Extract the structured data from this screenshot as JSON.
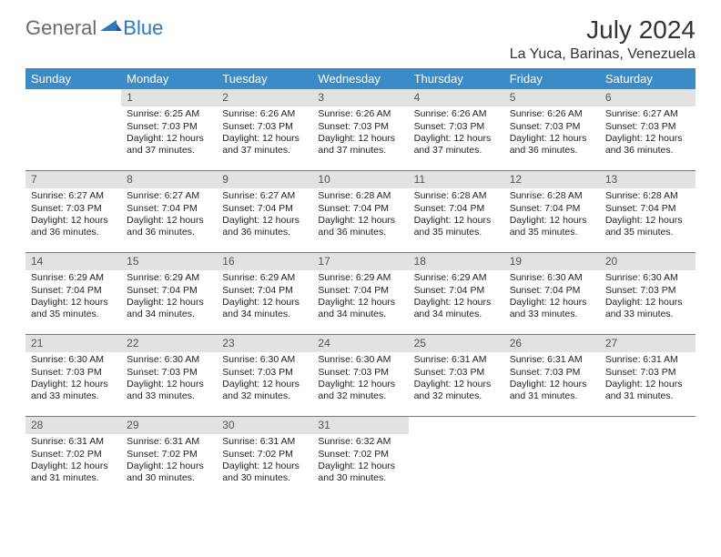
{
  "brand": {
    "part1": "General",
    "part2": "Blue"
  },
  "colors": {
    "header_bg": "#3b8bc9",
    "header_fg": "#ffffff",
    "date_strip_bg": "#e2e2e2",
    "rule": "#3b8bc9",
    "brand_gray": "#6a6a6a",
    "brand_blue": "#2a7ac0"
  },
  "title": "July 2024",
  "location": "La Yuca, Barinas, Venezuela",
  "weekdays": [
    "Sunday",
    "Monday",
    "Tuesday",
    "Wednesday",
    "Thursday",
    "Friday",
    "Saturday"
  ],
  "weeks": [
    [
      null,
      {
        "d": "1",
        "sr": "6:25 AM",
        "ss": "7:03 PM",
        "dl": "12 hours and 37 minutes."
      },
      {
        "d": "2",
        "sr": "6:26 AM",
        "ss": "7:03 PM",
        "dl": "12 hours and 37 minutes."
      },
      {
        "d": "3",
        "sr": "6:26 AM",
        "ss": "7:03 PM",
        "dl": "12 hours and 37 minutes."
      },
      {
        "d": "4",
        "sr": "6:26 AM",
        "ss": "7:03 PM",
        "dl": "12 hours and 37 minutes."
      },
      {
        "d": "5",
        "sr": "6:26 AM",
        "ss": "7:03 PM",
        "dl": "12 hours and 36 minutes."
      },
      {
        "d": "6",
        "sr": "6:27 AM",
        "ss": "7:03 PM",
        "dl": "12 hours and 36 minutes."
      }
    ],
    [
      {
        "d": "7",
        "sr": "6:27 AM",
        "ss": "7:03 PM",
        "dl": "12 hours and 36 minutes."
      },
      {
        "d": "8",
        "sr": "6:27 AM",
        "ss": "7:04 PM",
        "dl": "12 hours and 36 minutes."
      },
      {
        "d": "9",
        "sr": "6:27 AM",
        "ss": "7:04 PM",
        "dl": "12 hours and 36 minutes."
      },
      {
        "d": "10",
        "sr": "6:28 AM",
        "ss": "7:04 PM",
        "dl": "12 hours and 36 minutes."
      },
      {
        "d": "11",
        "sr": "6:28 AM",
        "ss": "7:04 PM",
        "dl": "12 hours and 35 minutes."
      },
      {
        "d": "12",
        "sr": "6:28 AM",
        "ss": "7:04 PM",
        "dl": "12 hours and 35 minutes."
      },
      {
        "d": "13",
        "sr": "6:28 AM",
        "ss": "7:04 PM",
        "dl": "12 hours and 35 minutes."
      }
    ],
    [
      {
        "d": "14",
        "sr": "6:29 AM",
        "ss": "7:04 PM",
        "dl": "12 hours and 35 minutes."
      },
      {
        "d": "15",
        "sr": "6:29 AM",
        "ss": "7:04 PM",
        "dl": "12 hours and 34 minutes."
      },
      {
        "d": "16",
        "sr": "6:29 AM",
        "ss": "7:04 PM",
        "dl": "12 hours and 34 minutes."
      },
      {
        "d": "17",
        "sr": "6:29 AM",
        "ss": "7:04 PM",
        "dl": "12 hours and 34 minutes."
      },
      {
        "d": "18",
        "sr": "6:29 AM",
        "ss": "7:04 PM",
        "dl": "12 hours and 34 minutes."
      },
      {
        "d": "19",
        "sr": "6:30 AM",
        "ss": "7:04 PM",
        "dl": "12 hours and 33 minutes."
      },
      {
        "d": "20",
        "sr": "6:30 AM",
        "ss": "7:03 PM",
        "dl": "12 hours and 33 minutes."
      }
    ],
    [
      {
        "d": "21",
        "sr": "6:30 AM",
        "ss": "7:03 PM",
        "dl": "12 hours and 33 minutes."
      },
      {
        "d": "22",
        "sr": "6:30 AM",
        "ss": "7:03 PM",
        "dl": "12 hours and 33 minutes."
      },
      {
        "d": "23",
        "sr": "6:30 AM",
        "ss": "7:03 PM",
        "dl": "12 hours and 32 minutes."
      },
      {
        "d": "24",
        "sr": "6:30 AM",
        "ss": "7:03 PM",
        "dl": "12 hours and 32 minutes."
      },
      {
        "d": "25",
        "sr": "6:31 AM",
        "ss": "7:03 PM",
        "dl": "12 hours and 32 minutes."
      },
      {
        "d": "26",
        "sr": "6:31 AM",
        "ss": "7:03 PM",
        "dl": "12 hours and 31 minutes."
      },
      {
        "d": "27",
        "sr": "6:31 AM",
        "ss": "7:03 PM",
        "dl": "12 hours and 31 minutes."
      }
    ],
    [
      {
        "d": "28",
        "sr": "6:31 AM",
        "ss": "7:02 PM",
        "dl": "12 hours and 31 minutes."
      },
      {
        "d": "29",
        "sr": "6:31 AM",
        "ss": "7:02 PM",
        "dl": "12 hours and 30 minutes."
      },
      {
        "d": "30",
        "sr": "6:31 AM",
        "ss": "7:02 PM",
        "dl": "12 hours and 30 minutes."
      },
      {
        "d": "31",
        "sr": "6:32 AM",
        "ss": "7:02 PM",
        "dl": "12 hours and 30 minutes."
      },
      null,
      null,
      null
    ]
  ],
  "cell_labels": {
    "sunrise": "Sunrise: ",
    "sunset": "Sunset: ",
    "daylight": "Daylight: "
  }
}
